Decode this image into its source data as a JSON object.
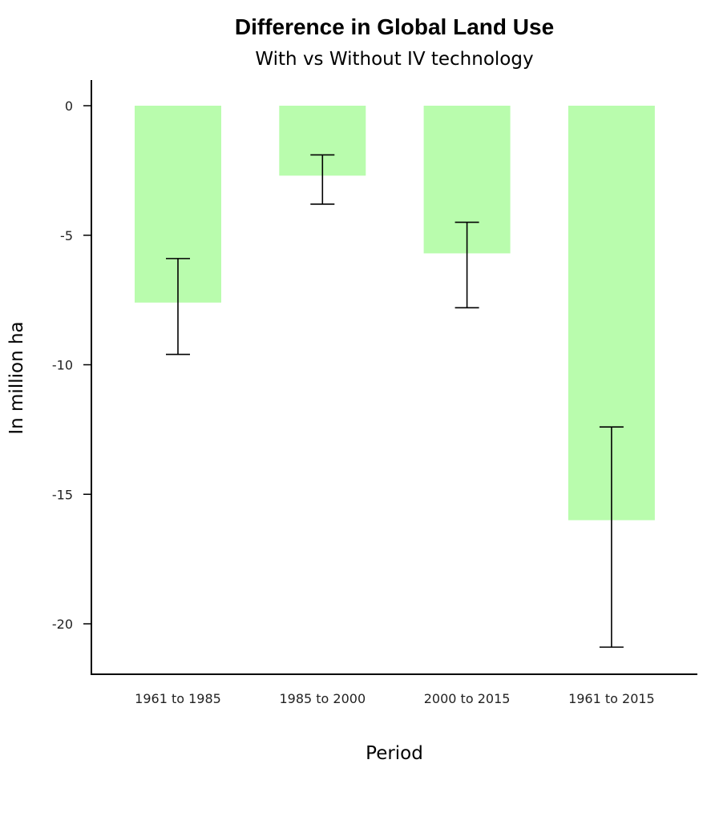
{
  "chart_data": {
    "type": "bar",
    "title": "Difference in Global Land Use",
    "subtitle": "With vs Without IV technology",
    "xlabel": "Period",
    "ylabel": "In million ha",
    "categories": [
      "1961 to 1985",
      "1985 to 2000",
      "2000 to 2015",
      "1961 to 2015"
    ],
    "values": [
      -7.6,
      -2.7,
      -5.7,
      -16.0
    ],
    "error_low": [
      -9.6,
      -3.8,
      -7.8,
      -20.9
    ],
    "error_high": [
      -5.9,
      -1.9,
      -4.5,
      -12.4
    ],
    "yticks": [
      0,
      -5,
      -10,
      -15,
      -20
    ],
    "ylim": [
      -22,
      1
    ],
    "bar_color": "#b9fcad",
    "error_bar_color": "#000000",
    "grid": false,
    "legend": "none"
  }
}
